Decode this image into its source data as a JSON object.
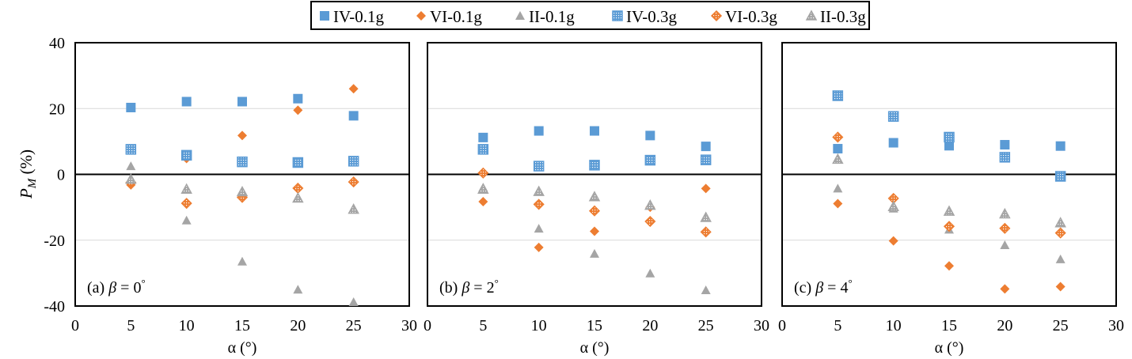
{
  "chart_data": [
    {
      "type": "scatter",
      "title": "(a) β = 0°",
      "panel_label": "(a) ",
      "beta_text": "β = 0",
      "xlabel": "α (°)",
      "ylabel": "P_M (%)",
      "xlim": [
        0,
        30
      ],
      "ylim": [
        -40,
        40
      ],
      "x": [
        5,
        10,
        15,
        20,
        25
      ],
      "series": [
        {
          "name": "IV-0.1g",
          "values": [
            20.3,
            22.1,
            22.1,
            23.0,
            17.8
          ]
        },
        {
          "name": "VI-0.1g",
          "values": [
            -3.2,
            4.8,
            11.8,
            19.5,
            26.0
          ]
        },
        {
          "name": "II-0.1g",
          "values": [
            2.5,
            -14.0,
            -26.5,
            -35.0,
            -38.8
          ]
        },
        {
          "name": "IV-0.3g",
          "values": [
            7.6,
            5.8,
            3.8,
            3.6,
            4.0
          ]
        },
        {
          "name": "VI-0.3g",
          "values": [
            -2.5,
            -8.8,
            -7.0,
            -4.2,
            -2.3
          ]
        },
        {
          "name": "II-0.3g",
          "values": [
            -1.5,
            -4.5,
            -5.3,
            -7.2,
            -10.6
          ]
        }
      ]
    },
    {
      "type": "scatter",
      "title": "(b) β = 2°",
      "panel_label": "(b) ",
      "beta_text": "β = 2",
      "xlabel": "α (°)",
      "xlim": [
        0,
        30
      ],
      "ylim": [
        -40,
        40
      ],
      "x": [
        5,
        10,
        15,
        20,
        25
      ],
      "series": [
        {
          "name": "IV-0.1g",
          "values": [
            11.2,
            13.2,
            13.2,
            11.8,
            8.5
          ]
        },
        {
          "name": "VI-0.1g",
          "values": [
            -8.3,
            -22.2,
            -17.3,
            -10.0,
            -4.3
          ]
        },
        {
          "name": "II-0.1g",
          "values": [
            -4.0,
            -16.5,
            -24.1,
            -30.1,
            -35.2
          ]
        },
        {
          "name": "IV-0.3g",
          "values": [
            7.6,
            2.5,
            2.8,
            4.3,
            4.4
          ]
        },
        {
          "name": "VI-0.3g",
          "values": [
            0.4,
            -9.1,
            -11.1,
            -14.3,
            -17.5
          ]
        },
        {
          "name": "II-0.3g",
          "values": [
            -4.5,
            -5.2,
            -6.8,
            -9.4,
            -13.1
          ]
        }
      ]
    },
    {
      "type": "scatter",
      "title": "(c) β = 4°",
      "panel_label": "(c) ",
      "beta_text": "β = 4",
      "xlabel": "α (°)",
      "xlim": [
        0,
        30
      ],
      "ylim": [
        -40,
        40
      ],
      "x": [
        5,
        10,
        15,
        20,
        25
      ],
      "series": [
        {
          "name": "IV-0.1g",
          "values": [
            7.8,
            9.6,
            8.7,
            9.0,
            8.6
          ]
        },
        {
          "name": "VI-0.1g",
          "values": [
            -8.9,
            -20.2,
            -27.8,
            -34.8,
            -34.1
          ]
        },
        {
          "name": "II-0.1g",
          "values": [
            -4.3,
            -10.4,
            -16.8,
            -21.5,
            -25.8
          ]
        },
        {
          "name": "IV-0.3g",
          "values": [
            23.9,
            17.6,
            11.3,
            5.2,
            -0.6
          ]
        },
        {
          "name": "VI-0.3g",
          "values": [
            11.3,
            -7.3,
            -15.8,
            -16.4,
            -17.8
          ]
        },
        {
          "name": "II-0.3g",
          "values": [
            4.6,
            -9.8,
            -11.2,
            -12.0,
            -14.7
          ]
        }
      ]
    }
  ],
  "legend": {
    "placement": "top-center",
    "entries": [
      {
        "label": "IV-0.1g",
        "marker": "square",
        "color": "#5b9bd5",
        "hatched": false
      },
      {
        "label": "VI-0.1g",
        "marker": "diamond",
        "color": "#ed7d31",
        "hatched": false
      },
      {
        "label": "II-0.1g",
        "marker": "triangle",
        "color": "#a5a5a5",
        "hatched": false
      },
      {
        "label": "IV-0.3g",
        "marker": "square",
        "color": "#5b9bd5",
        "hatched": true
      },
      {
        "label": "VI-0.3g",
        "marker": "diamond",
        "color": "#ed7d31",
        "hatched": true
      },
      {
        "label": "II-0.3g",
        "marker": "triangle",
        "color": "#a5a5a5",
        "hatched": true
      }
    ]
  },
  "y_ticks": [
    40,
    20,
    0,
    -20,
    -40
  ],
  "x_ticks": [
    0,
    5,
    10,
    15,
    20,
    25,
    30
  ],
  "gridlines": [
    20,
    -20
  ],
  "degree_symbol": "°"
}
